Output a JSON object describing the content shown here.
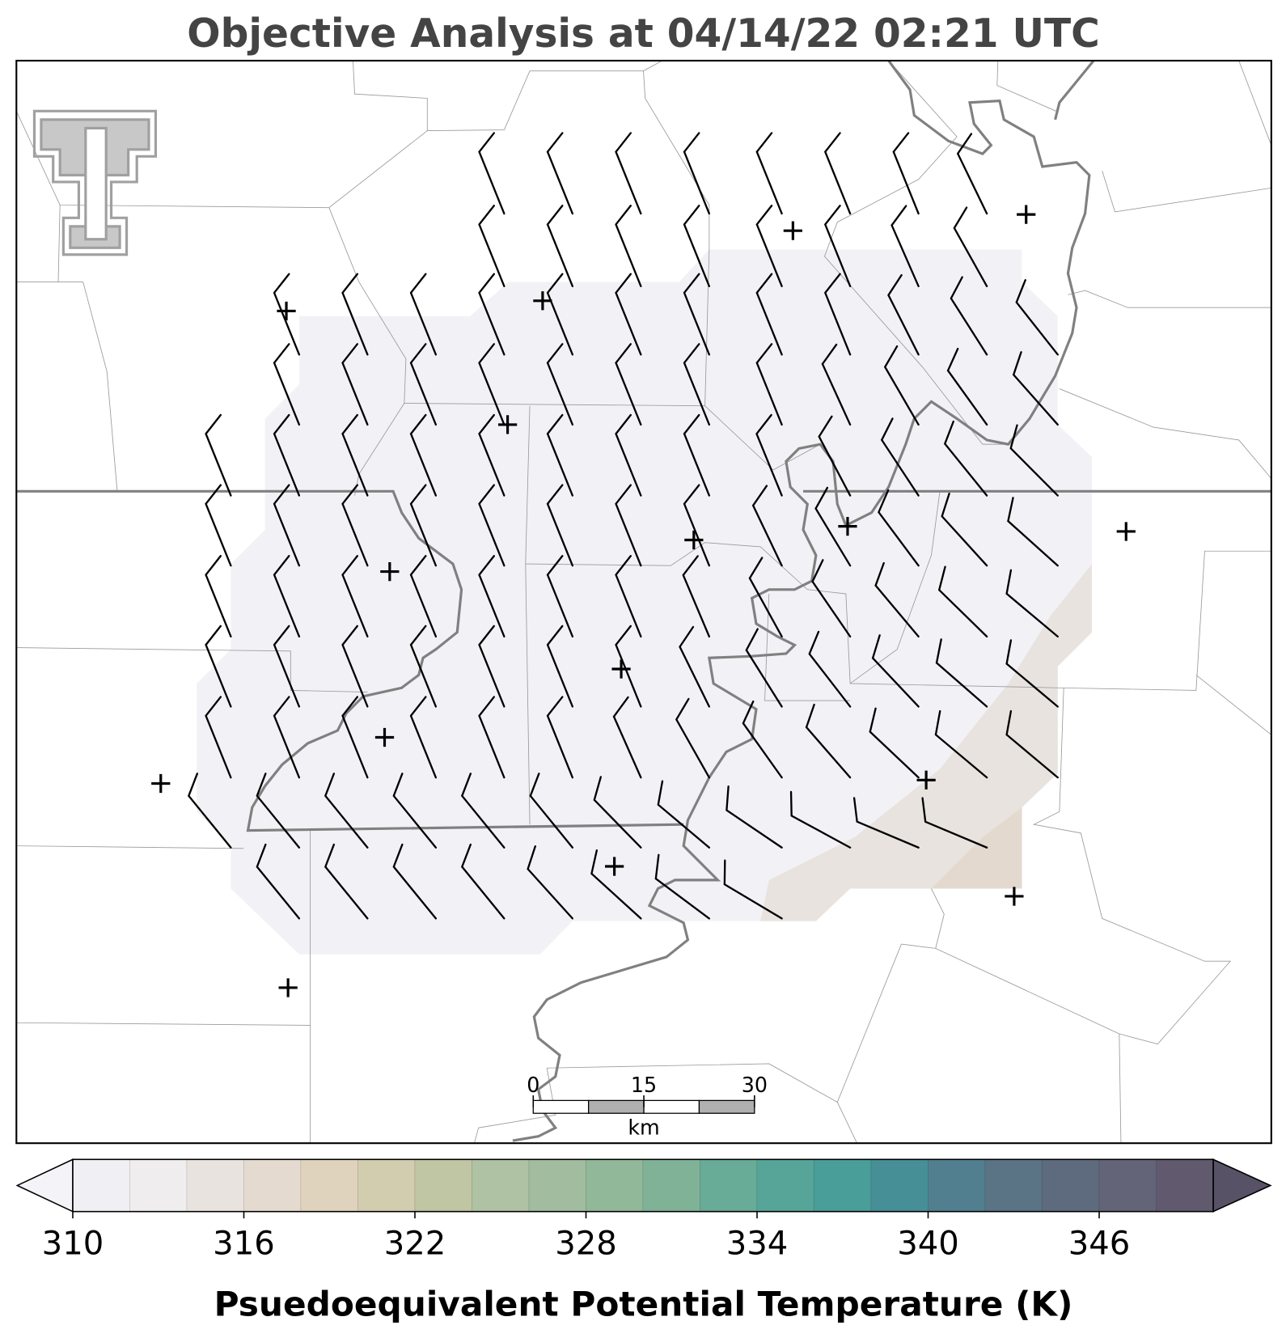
{
  "title": "Objective Analysis at 04/14/22 02:21 UTC",
  "colorbar": {
    "label": "Psuedoequivalent Potential Temperature (K)",
    "bounds": [
      310,
      312,
      314,
      316,
      318,
      320,
      322,
      324,
      326,
      328,
      330,
      332,
      334,
      336,
      338,
      340,
      342,
      344,
      346,
      348,
      350
    ],
    "colors": [
      "#f0f0f4",
      "#efedee",
      "#e9e3e0",
      "#e4dacf",
      "#e0d3bd",
      "#d3cdb0",
      "#c0c6a4",
      "#b0c2a4",
      "#a1bc9e",
      "#92b89a",
      "#80b298",
      "#68ab96",
      "#56a598",
      "#499e99",
      "#478f96",
      "#527f8f",
      "#5a7385",
      "#5e6a7d",
      "#636478",
      "#615a6e"
    ],
    "under_color": "#f4f4f8",
    "over_color": "#585266",
    "ticks": [
      310,
      316,
      322,
      328,
      334,
      340,
      346
    ]
  },
  "scale_bar": {
    "ticks": [
      0,
      15,
      30
    ],
    "unit": "km"
  }
}
